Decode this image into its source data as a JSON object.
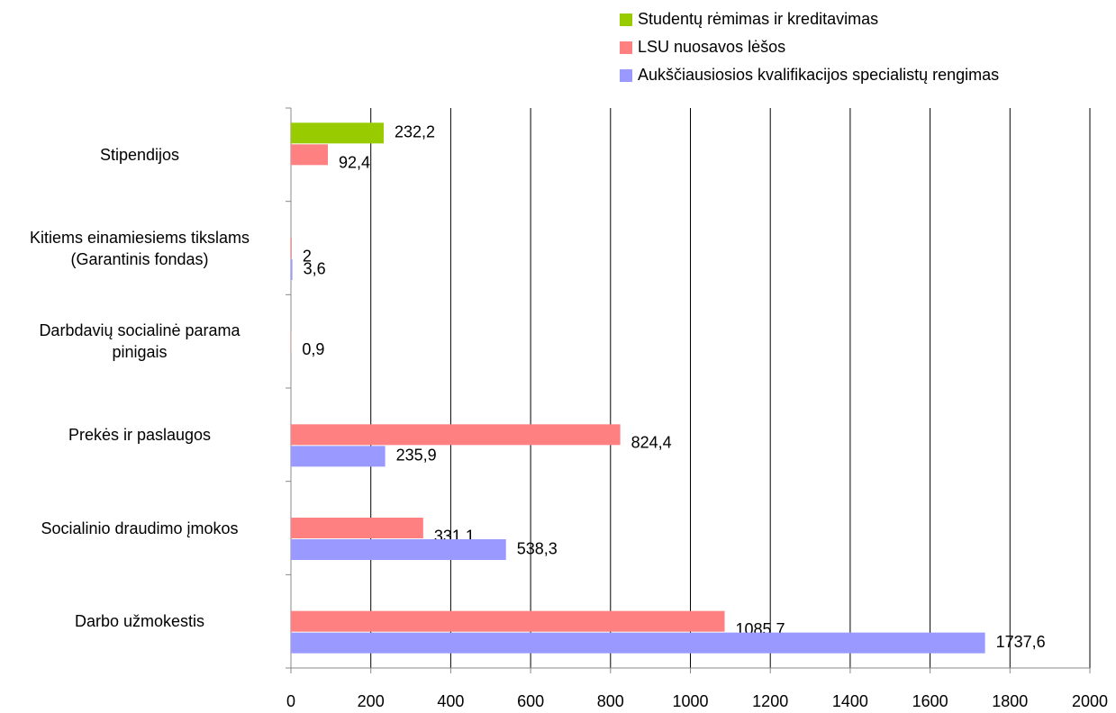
{
  "chart_data": {
    "type": "hbar",
    "categories": [
      "Darbo užmokestis",
      "Socialinio draudimo įmokos",
      "Prekės ir paslaugos",
      "Darbdavių socialinė parama\npinigais",
      "Kitiems einamiesiems tikslams\n(Garantinis fondas)",
      "Stipendijos"
    ],
    "series": [
      {
        "name": "Studentų rėmimas ir kreditavimas",
        "color": "#99cc00",
        "values": [
          null,
          null,
          null,
          null,
          null,
          232.2
        ],
        "value_labels": [
          null,
          null,
          null,
          null,
          null,
          "232,2"
        ]
      },
      {
        "name": "LSU nuosavos lėšos",
        "color": "#ff8080",
        "values": [
          1085.7,
          331.1,
          824.4,
          0.9,
          2,
          92.4
        ],
        "value_labels": [
          "1085,7",
          "331,1",
          "824,4",
          "0,9",
          "2",
          "92,4"
        ]
      },
      {
        "name": "Aukščiausiosios kvalifikacijos specialistų rengimas",
        "color": "#9999ff",
        "values": [
          1737.6,
          538.3,
          235.9,
          null,
          3.6,
          null
        ],
        "value_labels": [
          "1737,6",
          "538,3",
          "235,9",
          null,
          "3,6",
          null
        ]
      }
    ],
    "xlim": [
      0,
      2000
    ],
    "xticks": [
      0,
      200,
      400,
      600,
      800,
      1000,
      1200,
      1400,
      1600,
      1800,
      2000
    ],
    "grid": true,
    "legend": "top-right"
  }
}
